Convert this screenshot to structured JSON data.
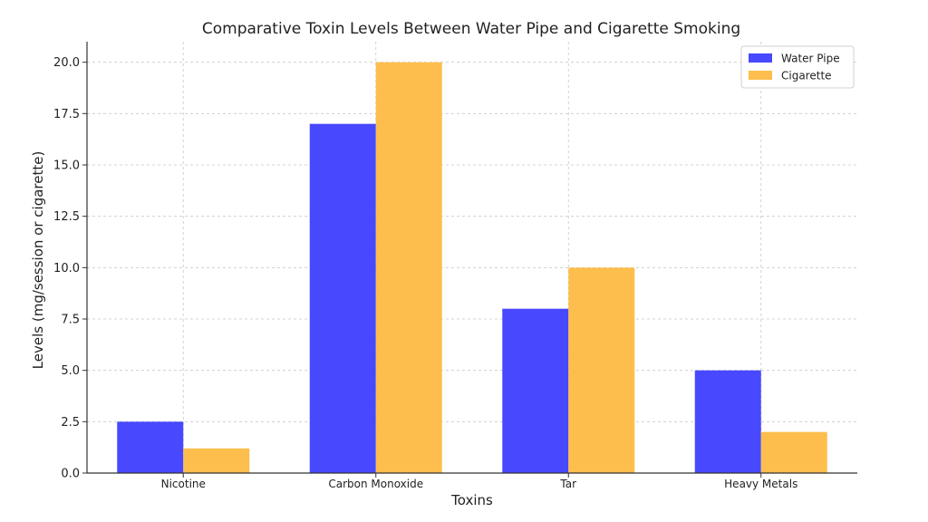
{
  "chart_data": {
    "type": "bar",
    "title": "Comparative Toxin Levels Between Water Pipe and Cigarette Smoking",
    "xlabel": "Toxins",
    "ylabel": "Levels (mg/session or cigarette)",
    "categories": [
      "Nicotine",
      "Carbon Monoxide",
      "Tar",
      "Heavy Metals"
    ],
    "series": [
      {
        "name": "Water Pipe",
        "values": [
          2.5,
          17,
          8,
          5
        ],
        "color": "#4848ff"
      },
      {
        "name": "Cigarette",
        "values": [
          1.2,
          20,
          10,
          2
        ],
        "color": "#fdbe4d"
      }
    ],
    "ylim": [
      0,
      21
    ],
    "yticks": [
      0.0,
      2.5,
      5.0,
      7.5,
      10.0,
      12.5,
      15.0,
      17.5,
      20.0
    ],
    "ytick_labels": [
      "0.0",
      "2.5",
      "5.0",
      "7.5",
      "10.0",
      "12.5",
      "15.0",
      "17.5",
      "20.0"
    ],
    "grid": true,
    "legend_position": "top-right"
  }
}
